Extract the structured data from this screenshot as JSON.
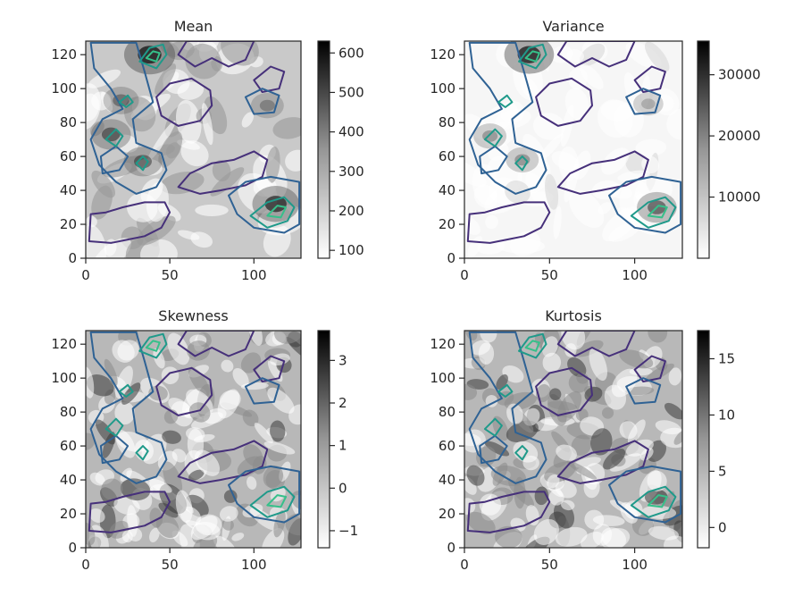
{
  "chart_data": [
    {
      "type": "heatmap",
      "title": "Mean",
      "xlim": [
        0,
        128
      ],
      "ylim": [
        0,
        128
      ],
      "xticks": [
        0,
        50,
        100
      ],
      "yticks": [
        0,
        20,
        40,
        60,
        80,
        100,
        120
      ],
      "colorbar": {
        "cmap": "gray_r",
        "range": [
          80,
          630
        ],
        "ticks": [
          100,
          200,
          300,
          400,
          500,
          600
        ]
      },
      "hotspots": [
        [
          38,
          120,
          1.0
        ],
        [
          113,
          32,
          0.85
        ],
        [
          15,
          73,
          0.6
        ],
        [
          34,
          57,
          0.55
        ],
        [
          21,
          93,
          0.45
        ],
        [
          108,
          90,
          0.35
        ]
      ]
    },
    {
      "type": "heatmap",
      "title": "Variance",
      "xlim": [
        0,
        128
      ],
      "ylim": [
        0,
        128
      ],
      "xticks": [
        0,
        50,
        100
      ],
      "yticks": [
        0,
        20,
        40,
        60,
        80,
        100,
        120
      ],
      "colorbar": {
        "cmap": "gray_r",
        "range": [
          0,
          35500
        ],
        "ticks": [
          10000,
          20000,
          30000
        ]
      },
      "hotspots": [
        [
          38,
          120,
          0.95
        ],
        [
          113,
          30,
          0.6
        ],
        [
          15,
          72,
          0.35
        ],
        [
          34,
          58,
          0.35
        ],
        [
          108,
          91,
          0.25
        ]
      ]
    },
    {
      "type": "heatmap",
      "title": "Skewness",
      "xlim": [
        0,
        128
      ],
      "ylim": [
        0,
        128
      ],
      "xticks": [
        0,
        50,
        100
      ],
      "yticks": [
        0,
        20,
        40,
        60,
        80,
        100,
        120
      ],
      "colorbar": {
        "cmap": "gray_r",
        "range": [
          -1.4,
          3.7
        ],
        "ticks": [
          -1,
          0,
          1,
          2,
          3
        ]
      },
      "hotspots": []
    },
    {
      "type": "heatmap",
      "title": "Kurtosis",
      "xlim": [
        0,
        128
      ],
      "ylim": [
        0,
        128
      ],
      "xticks": [
        0,
        50,
        100
      ],
      "yticks": [
        0,
        20,
        40,
        60,
        80,
        100,
        120
      ],
      "colorbar": {
        "cmap": "gray_r",
        "range": [
          -1.8,
          17.5
        ],
        "ticks": [
          0,
          5,
          10,
          15
        ]
      },
      "hotspots": []
    }
  ],
  "contours": {
    "levels": [
      {
        "color": "#46307a",
        "paths": [
          [
            [
              2,
              10
            ],
            [
              15,
              9
            ],
            [
              25,
              11
            ],
            [
              35,
              13
            ],
            [
              45,
              18
            ],
            [
              50,
              27
            ],
            [
              47,
              33
            ],
            [
              35,
              33
            ],
            [
              22,
              30
            ],
            [
              12,
              27
            ],
            [
              3,
              26
            ]
          ],
          [
            [
              55,
              120
            ],
            [
              60,
              128
            ],
            [
              100,
              128
            ],
            [
              95,
              117
            ],
            [
              85,
              113
            ],
            [
              75,
              118
            ],
            [
              65,
              113
            ]
          ],
          [
            [
              42,
              95
            ],
            [
              50,
              103
            ],
            [
              63,
              106
            ],
            [
              74,
              99
            ],
            [
              75,
              90
            ],
            [
              68,
              81
            ],
            [
              55,
              78
            ],
            [
              45,
              84
            ]
          ],
          [
            [
              55,
              42
            ],
            [
              62,
              50
            ],
            [
              75,
              56
            ],
            [
              88,
              58
            ],
            [
              100,
              63
            ],
            [
              108,
              58
            ],
            [
              105,
              48
            ],
            [
              95,
              43
            ],
            [
              80,
              40
            ],
            [
              68,
              38
            ]
          ],
          [
            [
              100,
              105
            ],
            [
              110,
              113
            ],
            [
              118,
              110
            ],
            [
              115,
              100
            ],
            [
              105,
              98
            ]
          ]
        ]
      },
      {
        "color": "#2f6294",
        "paths": [
          [
            [
              3,
              127
            ],
            [
              5,
              112
            ],
            [
              15,
              100
            ],
            [
              22,
              88
            ],
            [
              10,
              82
            ],
            [
              3,
              70
            ],
            [
              8,
              55
            ],
            [
              18,
              45
            ],
            [
              30,
              38
            ],
            [
              42,
              42
            ],
            [
              48,
              52
            ],
            [
              45,
              62
            ],
            [
              30,
              68
            ],
            [
              28,
              82
            ],
            [
              40,
              92
            ],
            [
              35,
              110
            ],
            [
              30,
              127
            ]
          ],
          [
            [
              85,
              37
            ],
            [
              95,
              45
            ],
            [
              110,
              48
            ],
            [
              127,
              45
            ],
            [
              127,
              20
            ],
            [
              118,
              15
            ],
            [
              100,
              18
            ],
            [
              90,
              26
            ]
          ],
          [
            [
              95,
              95
            ],
            [
              105,
              100
            ],
            [
              115,
              96
            ],
            [
              112,
              86
            ],
            [
              100,
              85
            ]
          ],
          [
            [
              10,
              50
            ],
            [
              20,
              52
            ],
            [
              25,
              60
            ],
            [
              18,
              66
            ],
            [
              9,
              60
            ]
          ]
        ]
      },
      {
        "color": "#1f9a8a",
        "paths": [
          [
            [
              32,
              116
            ],
            [
              38,
              124
            ],
            [
              46,
              126
            ],
            [
              48,
              120
            ],
            [
              42,
              112
            ]
          ],
          [
            [
              98,
              25
            ],
            [
              108,
              33
            ],
            [
              118,
              36
            ],
            [
              124,
              30
            ],
            [
              120,
              22
            ],
            [
              108,
              18
            ]
          ],
          [
            [
              12,
              70
            ],
            [
              18,
              76
            ],
            [
              22,
              72
            ],
            [
              18,
              66
            ]
          ],
          [
            [
              30,
              56
            ],
            [
              34,
              60
            ],
            [
              37,
              57
            ],
            [
              34,
              52
            ]
          ],
          [
            [
              20,
              92
            ],
            [
              25,
              96
            ],
            [
              28,
              92
            ],
            [
              24,
              89
            ]
          ]
        ]
      },
      {
        "color": "#36c08a",
        "paths": [
          [
            [
              36,
              118
            ],
            [
              40,
              122
            ],
            [
              44,
              121
            ],
            [
              42,
              116
            ]
          ],
          [
            [
              108,
              25
            ],
            [
              114,
              31
            ],
            [
              119,
              30
            ],
            [
              116,
              24
            ]
          ]
        ]
      }
    ]
  }
}
